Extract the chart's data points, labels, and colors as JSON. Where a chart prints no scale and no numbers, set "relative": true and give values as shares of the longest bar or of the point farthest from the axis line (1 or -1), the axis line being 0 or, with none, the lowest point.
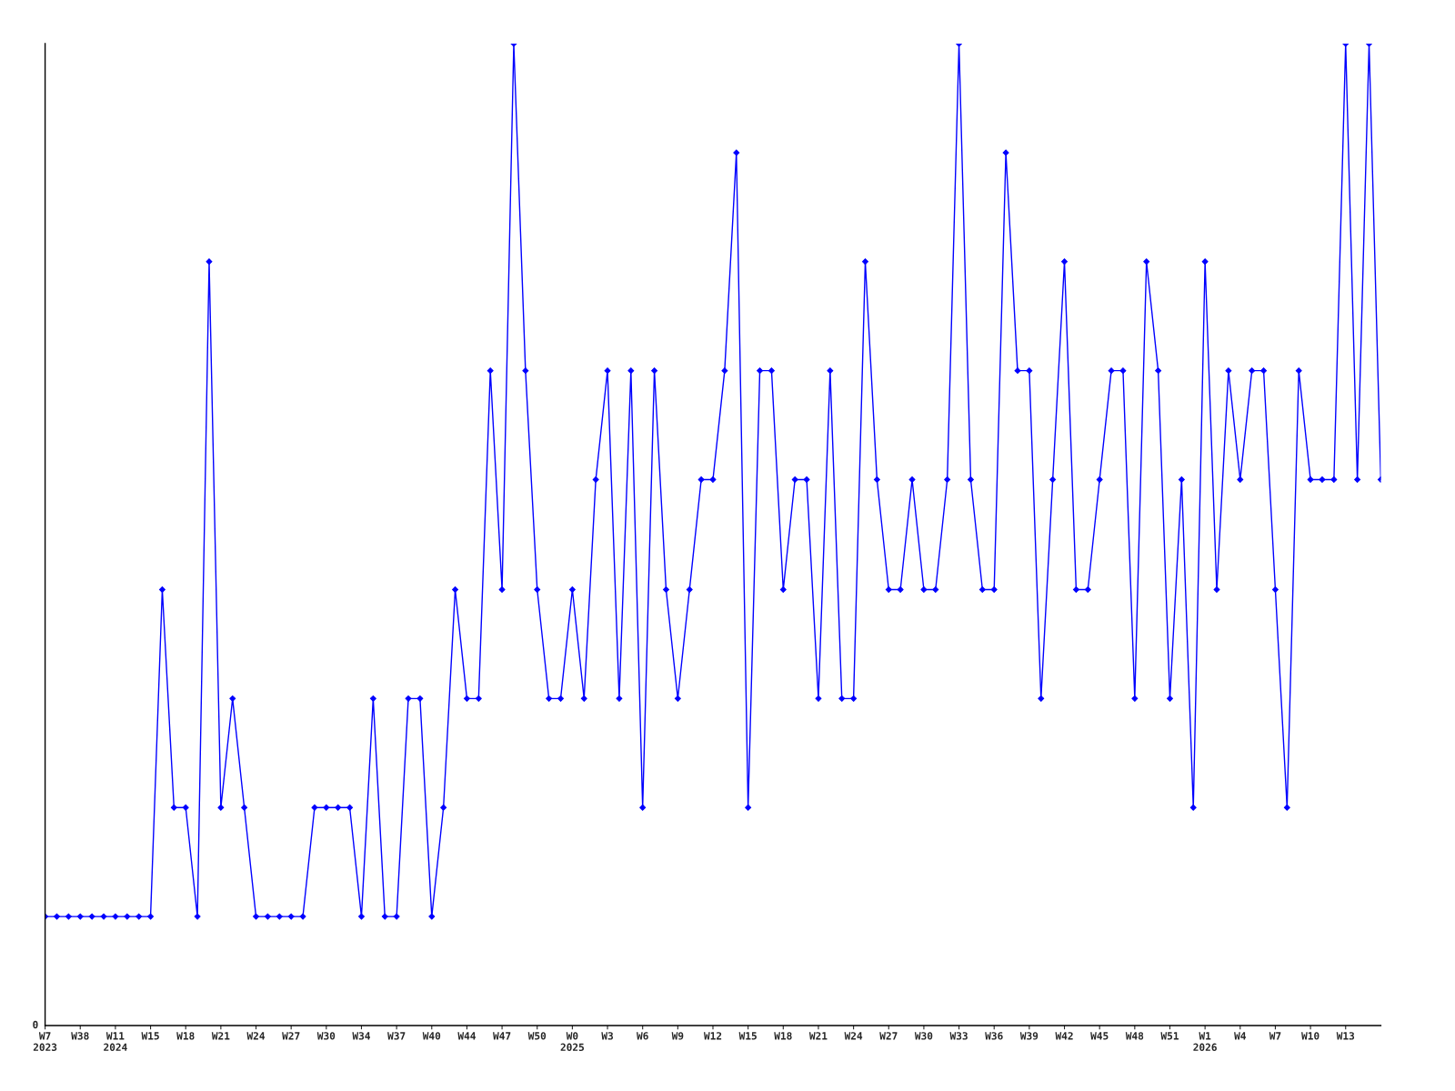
{
  "chart_data": {
    "type": "line",
    "relative": true,
    "grid": false,
    "legend": false,
    "marker": "diamond",
    "line_style": "solid",
    "annotations": [
      "0"
    ],
    "categories": [
      "W7\n2023",
      null,
      null,
      "W38",
      null,
      null,
      "W11\n2024",
      null,
      null,
      "W15",
      null,
      null,
      "W18",
      null,
      null,
      "W21",
      null,
      null,
      "W24",
      null,
      null,
      "W27",
      null,
      null,
      "W30",
      null,
      null,
      "W34",
      null,
      null,
      "W37",
      null,
      null,
      "W40",
      null,
      null,
      "W44",
      null,
      null,
      "W47",
      null,
      null,
      "W50",
      null,
      null,
      "W0\n2025",
      null,
      null,
      "W3",
      null,
      null,
      "W6",
      null,
      null,
      "W9",
      null,
      null,
      "W12",
      null,
      null,
      "W15",
      null,
      null,
      "W18",
      null,
      null,
      "W21",
      null,
      null,
      "W24",
      null,
      null,
      "W27",
      null,
      null,
      "W30",
      null,
      null,
      "W33",
      null,
      null,
      "W36",
      null,
      null,
      "W39",
      null,
      null,
      "W42",
      null,
      null,
      "W45",
      null,
      null,
      "W48",
      null,
      null,
      "W51",
      null,
      null,
      "W1\n2026",
      null,
      null,
      "W4",
      null,
      null,
      "W7",
      null,
      null,
      "W10",
      null,
      null,
      "W13",
      null,
      null,
      null
    ],
    "series": [
      {
        "color": "#0000ff",
        "values": [
          0.111,
          0.111,
          0.111,
          0.111,
          0.111,
          0.111,
          0.111,
          0.111,
          0.111,
          0.111,
          0.444,
          0.222,
          0.222,
          0.111,
          0.778,
          0.222,
          0.333,
          0.222,
          0.111,
          0.111,
          0.111,
          0.111,
          0.111,
          0.222,
          0.222,
          0.222,
          0.222,
          0.111,
          0.333,
          0.111,
          0.111,
          0.333,
          0.333,
          0.111,
          0.222,
          0.444,
          0.333,
          0.333,
          0.667,
          0.444,
          1,
          0.667,
          0.444,
          0.333,
          0.333,
          0.444,
          0.333,
          0.556,
          0.667,
          0.333,
          0.667,
          0.222,
          0.667,
          0.444,
          0.333,
          0.444,
          0.556,
          0.556,
          0.667,
          0.889,
          0.222,
          0.667,
          0.667,
          0.444,
          0.556,
          0.556,
          0.333,
          0.667,
          0.333,
          0.333,
          0.778,
          0.556,
          0.444,
          0.444,
          0.556,
          0.444,
          0.444,
          0.556,
          1,
          0.556,
          0.444,
          0.444,
          0.889,
          0.667,
          0.667,
          0.333,
          0.556,
          0.778,
          0.444,
          0.444,
          0.556,
          0.667,
          0.667,
          0.333,
          0.778,
          0.667,
          0.333,
          0.556,
          0.222,
          0.778,
          0.444,
          0.667,
          0.556,
          0.667,
          0.667,
          0.444,
          0.222,
          0.667,
          0.556,
          0.556,
          0.556,
          1,
          0.556,
          1,
          0.556
        ]
      }
    ]
  }
}
